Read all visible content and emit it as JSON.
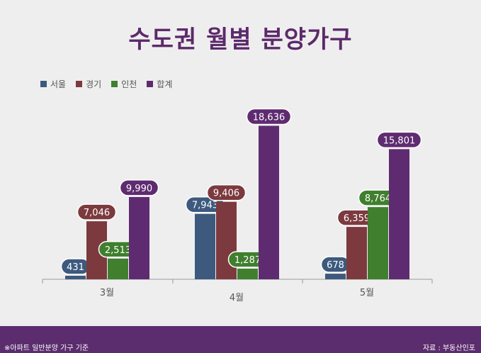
{
  "title": "수도권 월별 분양가구",
  "colors": {
    "title": "#5c2a6b",
    "footer": "#5b2c6e",
    "background": "#efeeef"
  },
  "legend": [
    {
      "label": "서울",
      "color": "#3d5a7e"
    },
    {
      "label": "경기",
      "color": "#7c3a3e"
    },
    {
      "label": "인천",
      "color": "#3f7f2e"
    },
    {
      "label": "합계",
      "color": "#5f2b70"
    }
  ],
  "chart_data": {
    "type": "bar",
    "title": "수도권 월별 분양가구",
    "categories": [
      "3월",
      "4월",
      "5월"
    ],
    "series": [
      {
        "name": "서울",
        "values": [
          431,
          7943,
          678
        ],
        "color": "#3d5a7e"
      },
      {
        "name": "경기",
        "values": [
          7046,
          9406,
          6359
        ],
        "color": "#7c3a3e"
      },
      {
        "name": "인천",
        "values": [
          2513,
          1287,
          8764
        ],
        "color": "#3f7f2e"
      },
      {
        "name": "합계",
        "values": [
          9990,
          18636,
          15801
        ],
        "color": "#5f2b70"
      }
    ],
    "data_labels": [
      [
        "431",
        "7,943",
        "678"
      ],
      [
        "7,046",
        "9,406",
        "6,359"
      ],
      [
        "2,513",
        "1,287",
        "8,764"
      ],
      [
        "9,990",
        "18,636",
        "15,801"
      ]
    ],
    "ylim": [
      0,
      21000
    ],
    "grid": false,
    "legend_position": "top-left"
  },
  "footer": {
    "note": "※아파트 일반분양 가구 기준",
    "source": "자료 : 부동산인포"
  }
}
